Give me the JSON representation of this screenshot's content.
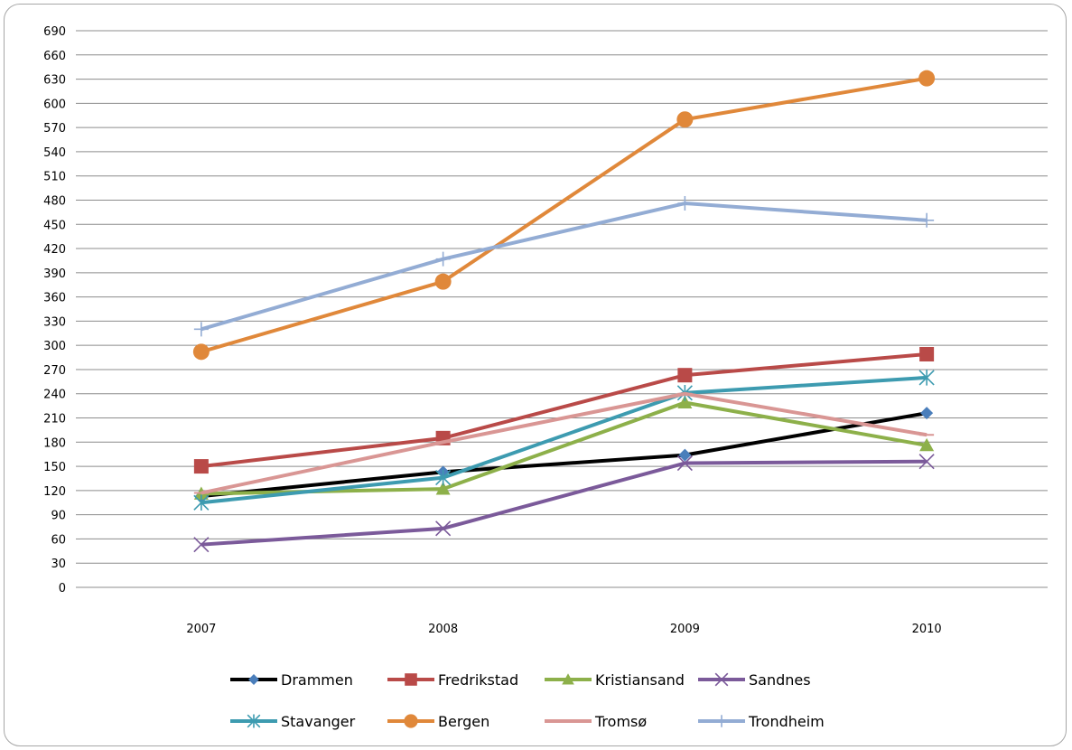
{
  "chart_data": {
    "type": "line",
    "title": "",
    "xlabel": "",
    "ylabel": "",
    "categories": [
      "2007",
      "2008",
      "2009",
      "2010"
    ],
    "ylim": [
      0,
      690
    ],
    "ytick_step": 30,
    "grid": "horizontal",
    "legend_position": "bottom",
    "series": [
      {
        "name": "Drammen",
        "values": [
          113,
          143,
          164,
          216
        ],
        "color": "#000000",
        "marker": "diamond"
      },
      {
        "name": "Fredrikstad",
        "values": [
          150,
          185,
          263,
          289
        ],
        "color": "#b94a48",
        "marker": "square"
      },
      {
        "name": "Kristiansand",
        "values": [
          116,
          122,
          229,
          176
        ],
        "color": "#8db04a",
        "marker": "triangle"
      },
      {
        "name": "Sandnes",
        "values": [
          53,
          73,
          154,
          156
        ],
        "color": "#7b5a9a",
        "marker": "x"
      },
      {
        "name": "Stavanger",
        "values": [
          105,
          136,
          241,
          260
        ],
        "color": "#3d9bb0",
        "marker": "asterisk"
      },
      {
        "name": "Bergen",
        "values": [
          292,
          379,
          580,
          631
        ],
        "color": "#e0883a",
        "marker": "circle"
      },
      {
        "name": "Tromsø",
        "values": [
          117,
          180,
          240,
          189
        ],
        "color": "#d99694",
        "marker": "dash"
      },
      {
        "name": "Trondheim",
        "values": [
          320,
          407,
          476,
          455
        ],
        "color": "#93acd4",
        "marker": "plus"
      }
    ]
  }
}
